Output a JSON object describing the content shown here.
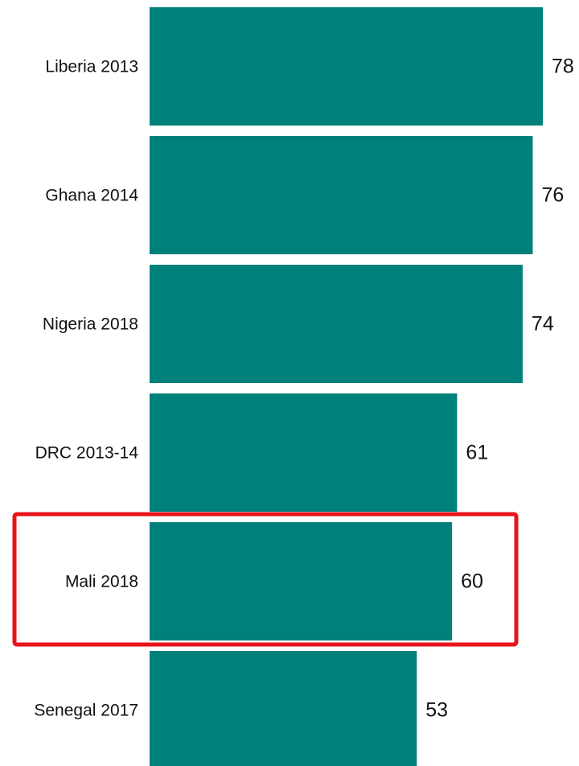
{
  "chart_data": {
    "type": "bar",
    "orientation": "horizontal",
    "categories": [
      "Liberia 2013",
      "Ghana 2014",
      "Nigeria 2018",
      "DRC 2013-14",
      "Mali 2018",
      "Senegal 2017"
    ],
    "values": [
      78,
      76,
      74,
      61,
      60,
      53
    ],
    "data_labels": [
      "78",
      "76",
      "74",
      "61",
      "60",
      "53"
    ],
    "title": "",
    "xlabel": "",
    "ylabel": "",
    "xlim": [
      0,
      78
    ],
    "grid": false,
    "legend": "none",
    "bar_color": "#00807A",
    "highlight": {
      "category": "Mali 2018",
      "color": "#E8141B"
    }
  }
}
